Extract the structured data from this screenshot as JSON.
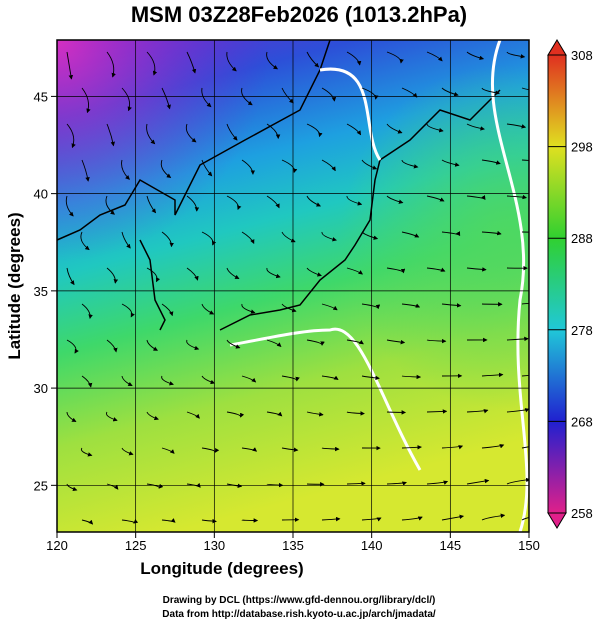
{
  "title": "MSM 03Z28Feb2026 (1013.2hPa)",
  "map": {
    "xlabel": "Longitude (degrees)",
    "ylabel": "Latitude  (degrees)",
    "xlim": [
      120,
      150
    ],
    "ylim": [
      22.6,
      47.9
    ],
    "xticks": [
      120,
      125,
      130,
      135,
      140,
      145,
      150
    ],
    "yticks": [
      25,
      30,
      35,
      40,
      45
    ]
  },
  "colorbar": {
    "lim": [
      258,
      308
    ],
    "ticks": [
      258,
      268,
      278,
      288,
      298,
      308
    ]
  },
  "credits": [
    "Drawing by DCL (https://www.gfd-dennou.org/library/dcl/)",
    "Data from http://database.rish.kyoto-u.ac.jp/arch/jmadata/"
  ]
}
